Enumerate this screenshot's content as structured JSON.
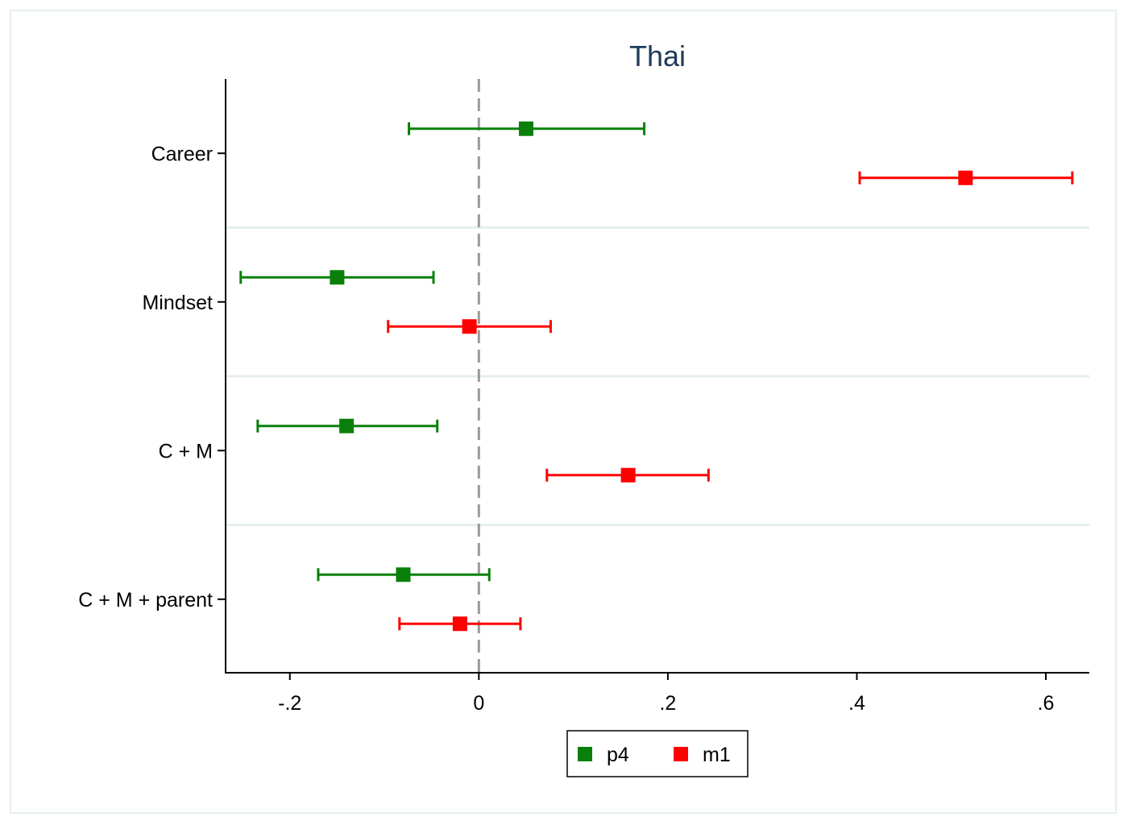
{
  "chart_data": {
    "type": "scatter",
    "subtype": "coefficient-plot-with-confidence-intervals",
    "title": "Thai",
    "xlabel": "",
    "ylabel": "",
    "xlim": [
      -0.268,
      0.646
    ],
    "x_ticks": [
      -0.2,
      0,
      0.2,
      0.4,
      0.6
    ],
    "x_tick_labels": [
      "-.2",
      "0",
      ".2",
      ".4",
      ".6"
    ],
    "reference_line": {
      "x": 0,
      "style": "dashed",
      "color": "#9a9a9a"
    },
    "grid": "horizontal separators between categories",
    "categories": [
      "Career",
      "Mindset",
      "C + M",
      "C + M + parent"
    ],
    "series": [
      {
        "name": "p4",
        "color": "#0a800a",
        "marker": "square",
        "points": [
          {
            "category": "Career",
            "estimate": 0.05,
            "ci_low": -0.074,
            "ci_high": 0.175
          },
          {
            "category": "Mindset",
            "estimate": -0.15,
            "ci_low": -0.252,
            "ci_high": -0.048
          },
          {
            "category": "C + M",
            "estimate": -0.14,
            "ci_low": -0.234,
            "ci_high": -0.044
          },
          {
            "category": "C + M + parent",
            "estimate": -0.08,
            "ci_low": -0.17,
            "ci_high": 0.011
          }
        ]
      },
      {
        "name": "m1",
        "color": "#ff0000",
        "marker": "square",
        "points": [
          {
            "category": "Career",
            "estimate": 0.515,
            "ci_low": 0.403,
            "ci_high": 0.628
          },
          {
            "category": "Mindset",
            "estimate": -0.01,
            "ci_low": -0.096,
            "ci_high": 0.076
          },
          {
            "category": "C + M",
            "estimate": 0.158,
            "ci_low": 0.072,
            "ci_high": 0.243
          },
          {
            "category": "C + M + parent",
            "estimate": -0.02,
            "ci_low": -0.084,
            "ci_high": 0.044
          }
        ]
      }
    ],
    "legend": {
      "placement": "bottom-center",
      "entries": [
        "p4",
        "m1"
      ]
    }
  }
}
